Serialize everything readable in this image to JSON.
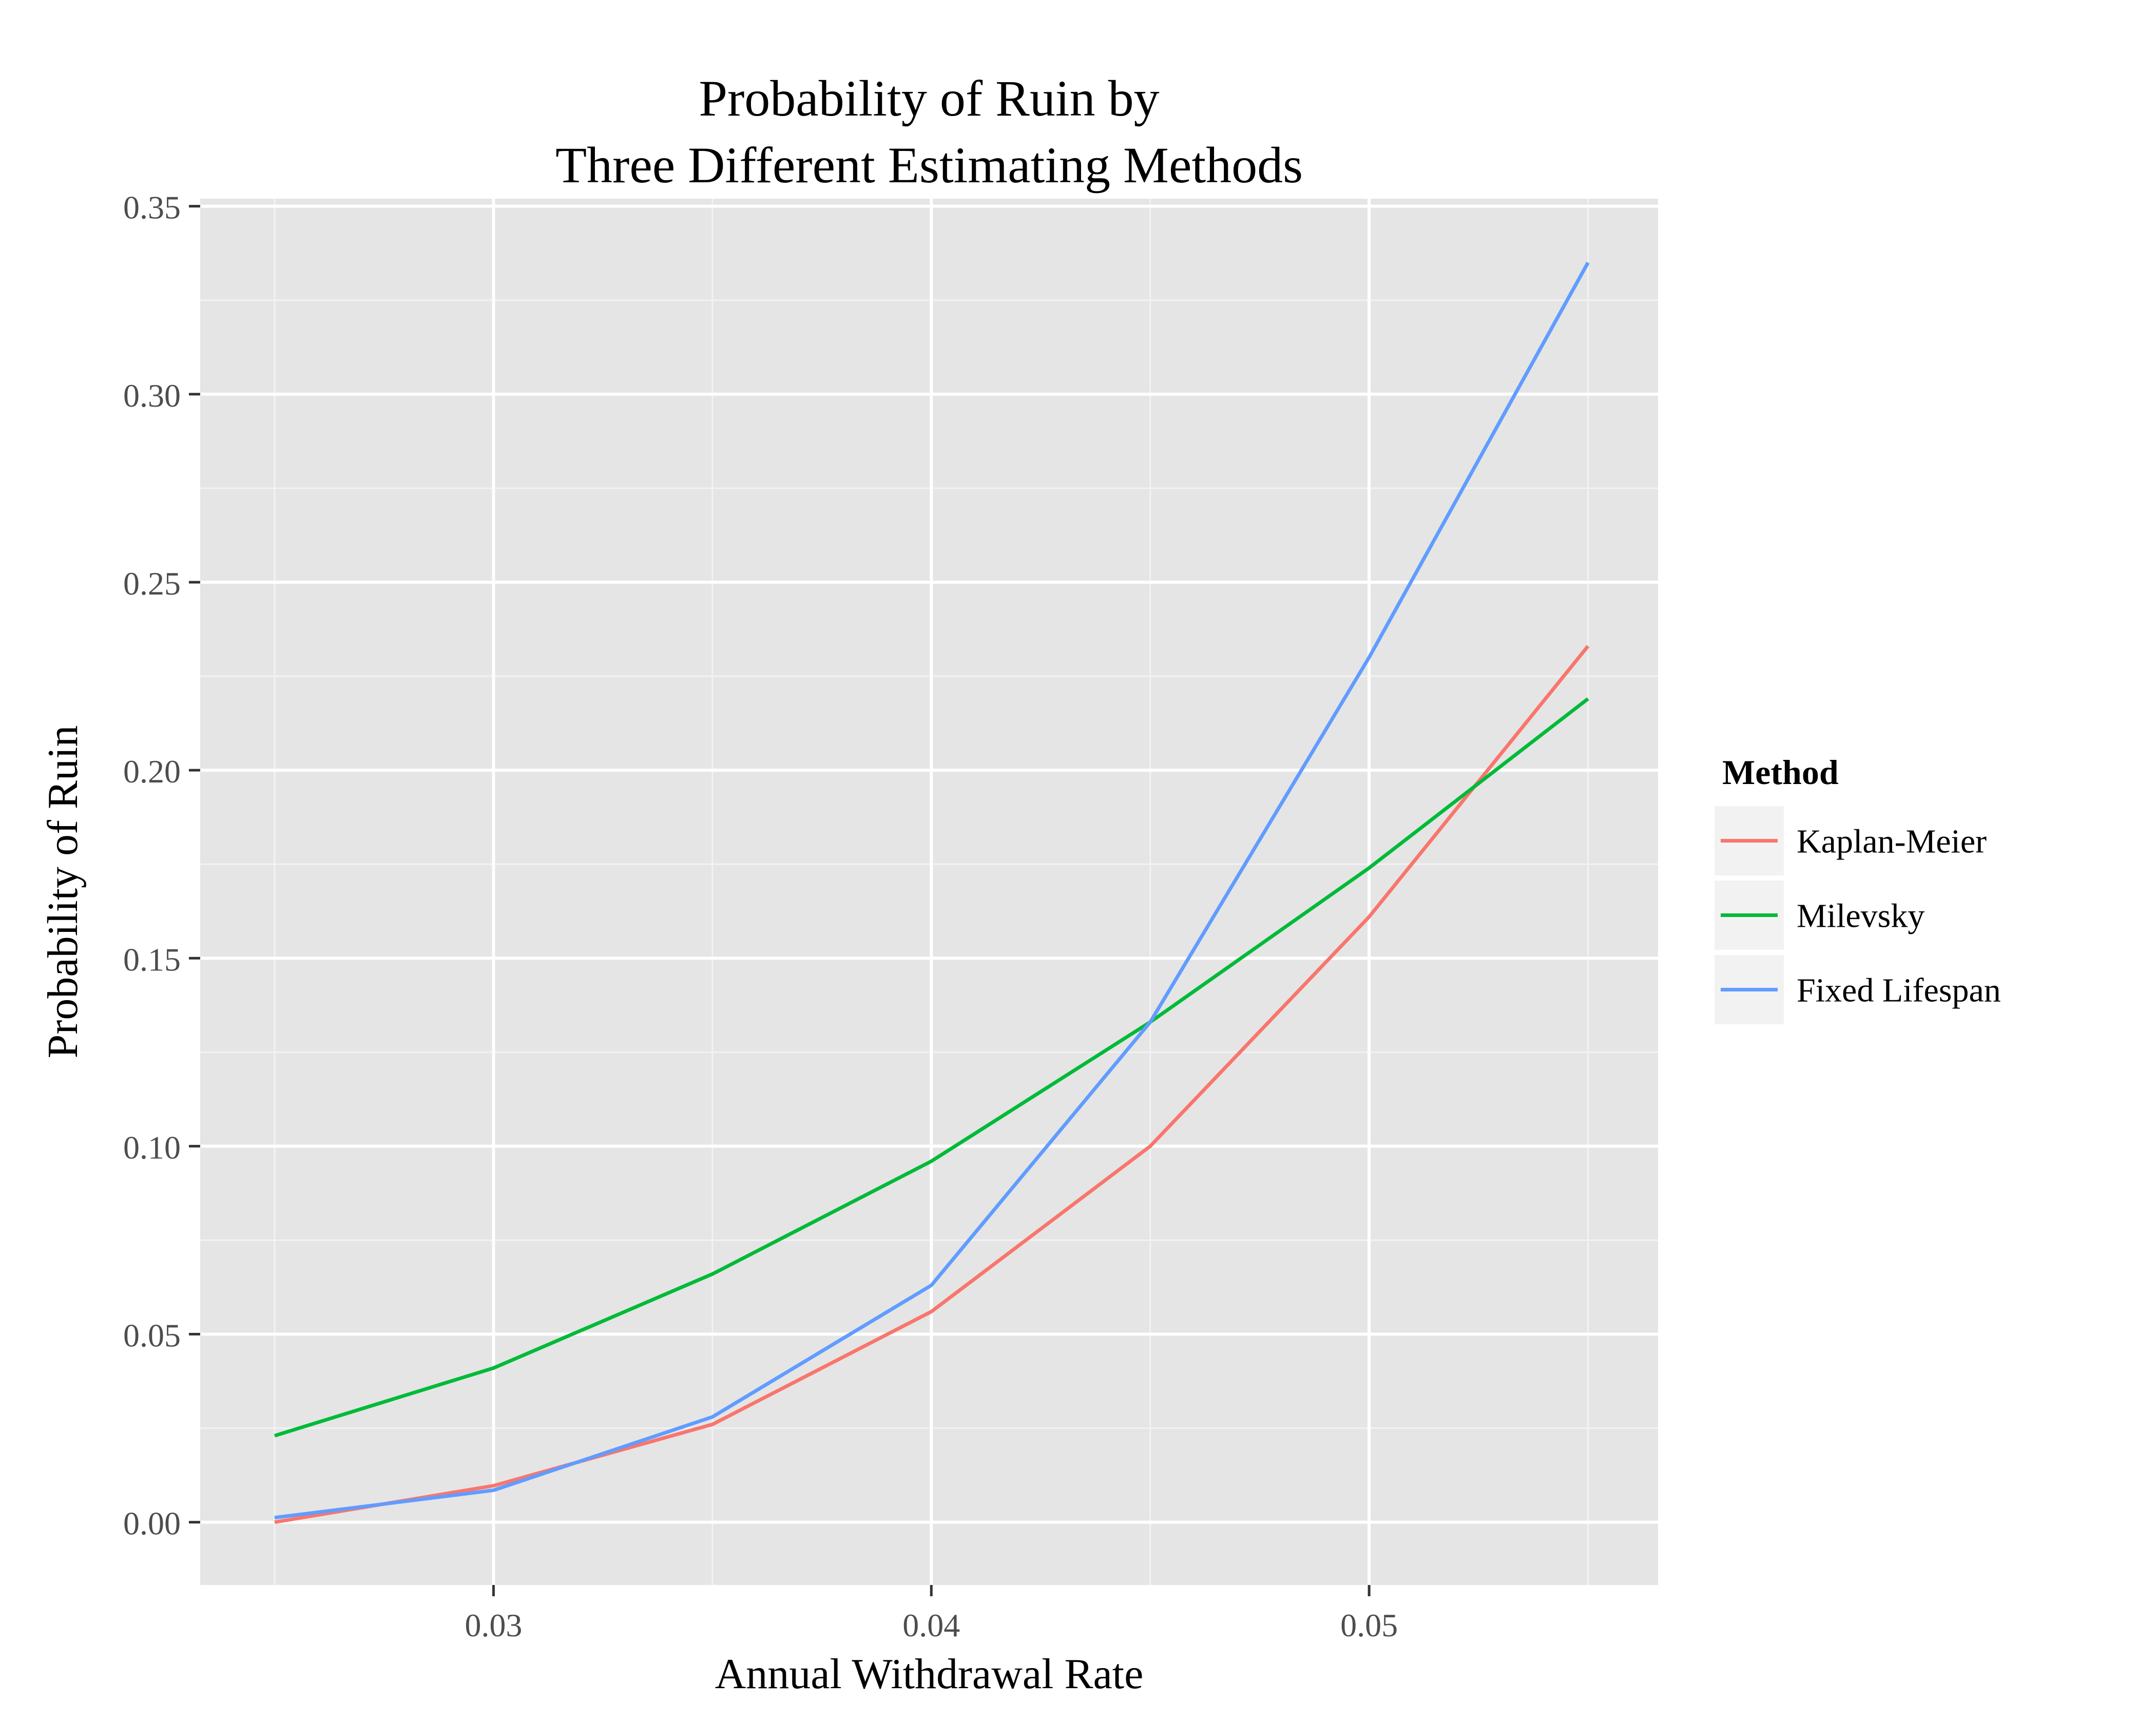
{
  "chart_data": {
    "type": "line",
    "title": [
      "Probability of Ruin by",
      "Three Different Estimating Methods"
    ],
    "xlabel": "Annual Withdrawal Rate",
    "ylabel": "Probability of Ruin",
    "x": [
      0.025,
      0.03,
      0.035,
      0.04,
      0.045,
      0.05,
      0.055
    ],
    "xlim": [
      0.0233,
      0.0566
    ],
    "ylim": [
      -0.0167,
      0.352
    ],
    "x_ticks": [
      0.03,
      0.04,
      0.05
    ],
    "x_tick_labels": [
      "0.03",
      "0.04",
      "0.05"
    ],
    "x_minor_ticks": [
      0.025,
      0.035,
      0.045,
      0.055
    ],
    "y_ticks": [
      0,
      0.05,
      0.1,
      0.15,
      0.2,
      0.25,
      0.3,
      0.35
    ],
    "y_tick_labels": [
      "0.00",
      "0.05",
      "0.10",
      "0.15",
      "0.20",
      "0.25",
      "0.30",
      "0.35"
    ],
    "y_minor_ticks": [
      0.025,
      0.075,
      0.125,
      0.175,
      0.225,
      0.275,
      0.325
    ],
    "grid": true,
    "legend": {
      "title": "Method",
      "position": "right"
    },
    "series": [
      {
        "name": "Kaplan-Meier",
        "color": "#F8766D",
        "values": [
          0.0,
          0.0097,
          0.026,
          0.056,
          0.1,
          0.161,
          0.233
        ]
      },
      {
        "name": "Milevsky",
        "color": "#00BA38",
        "values": [
          0.023,
          0.041,
          0.066,
          0.096,
          0.133,
          0.174,
          0.219
        ]
      },
      {
        "name": "Fixed Lifespan",
        "color": "#619CFF",
        "values": [
          0.0012,
          0.0085,
          0.028,
          0.063,
          0.133,
          0.23,
          0.335
        ]
      }
    ],
    "colors": {
      "panel": "#E5E5E5",
      "grid_major": "#FFFFFF",
      "grid_minor": "#F2F2F2",
      "tick_text": "#4D4D4D",
      "legend_key": "#F2F2F2"
    }
  }
}
